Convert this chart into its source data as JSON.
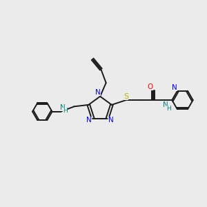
{
  "background_color": "#ebebeb",
  "bond_color": "#1a1a1a",
  "N_color": "#0000ff",
  "O_color": "#ff0000",
  "S_color": "#b8b800",
  "NH_color": "#008080",
  "figsize": [
    3.0,
    3.0
  ],
  "dpi": 100,
  "xlim": [
    0,
    12
  ],
  "ylim": [
    0,
    12
  ]
}
